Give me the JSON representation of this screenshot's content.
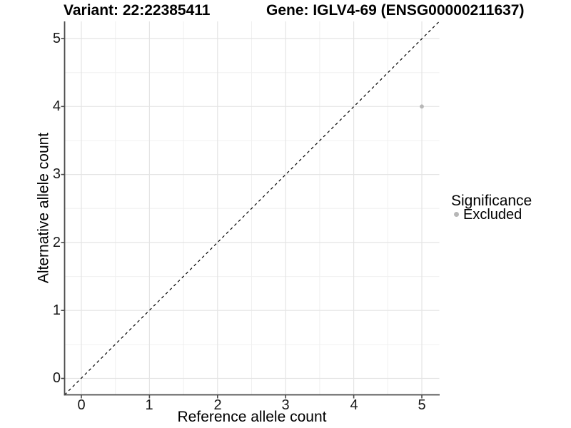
{
  "chart_data": {
    "type": "scatter",
    "title_left": "Variant: 22:22385411",
    "title_right": "Gene: IGLV4-69 (ENSG00000211637)",
    "xlabel": "Reference allele count",
    "ylabel": "Alternative allele count",
    "xticks": [
      "0",
      "1",
      "2",
      "3",
      "4",
      "5"
    ],
    "yticks": [
      "0",
      "1",
      "2",
      "3",
      "4",
      "5"
    ],
    "xlim": [
      -0.25,
      5.25
    ],
    "ylim": [
      -0.25,
      5.25
    ],
    "grid": "major and minor gridlines on white background",
    "points": [
      {
        "x": 5,
        "y": 4,
        "significance": "Excluded"
      }
    ],
    "reference_line": {
      "equation": "y = x",
      "style": "dashed",
      "color": "#000000"
    },
    "legend": {
      "position": "right",
      "title": "Significance",
      "items": [
        {
          "label": "Excluded",
          "color": "#b7b7b7"
        }
      ]
    },
    "colors": {
      "background": "#ffffff",
      "excluded_point": "#b7b7b7",
      "grid_major": "#e4e4e4",
      "grid_minor": "#f0f0f0",
      "axis_line": "#4a4a4a",
      "tick_mark": "#4a4a4a",
      "text": "#000000"
    }
  }
}
